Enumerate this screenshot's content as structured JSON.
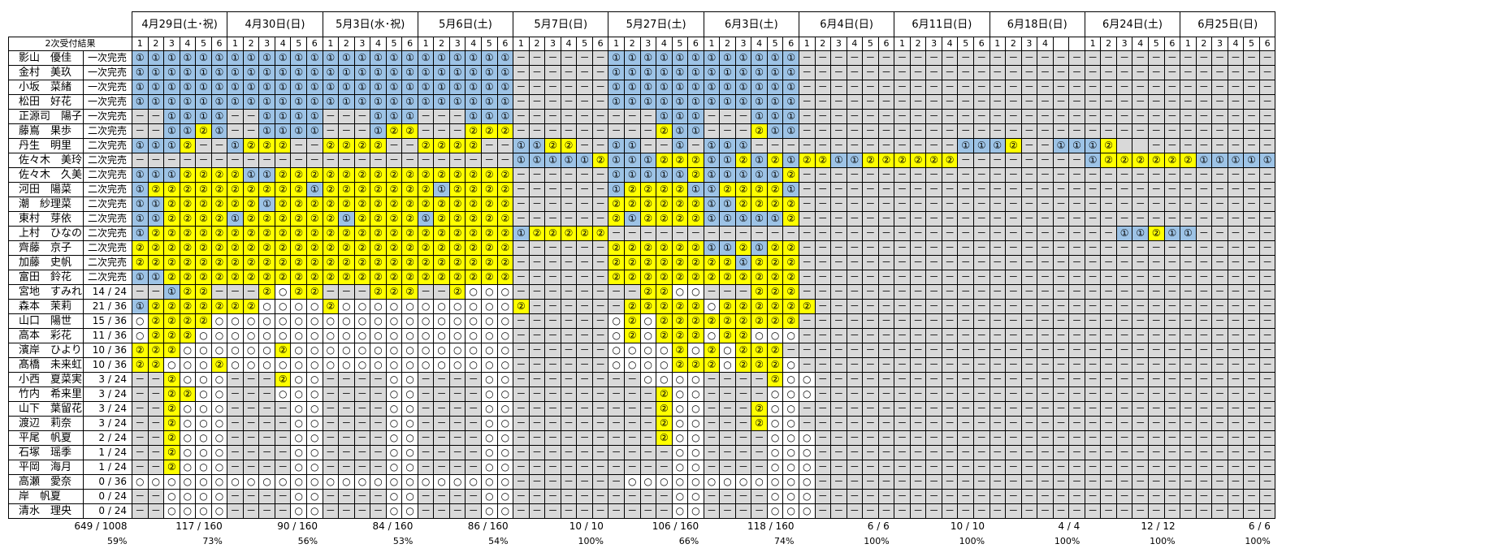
{
  "header_label": "2次受付結果",
  "dates": [
    "4月29日(土･祝)",
    "4月30日(日)",
    "5月3日(水･祝)",
    "5月6日(土)",
    "5月7日(日)",
    "5月27日(土)",
    "6月3日(土)",
    "6月4日(日)",
    "6月11日(日)",
    "6月18日(日)",
    "6月24日(土)",
    "6月25日(日)"
  ],
  "parts": [
    [
      "1",
      "2",
      "3",
      "4",
      "5",
      "6"
    ],
    [
      "1",
      "2",
      "3",
      "4",
      "5",
      "6"
    ],
    [
      "1",
      "2",
      "3",
      "4",
      "5",
      "6"
    ],
    [
      "1",
      "2",
      "3",
      "4",
      "5",
      "6"
    ],
    [
      "1",
      "2",
      "3",
      "4",
      "5",
      "6"
    ],
    [
      "1",
      "2",
      "3",
      "4",
      "5",
      "6"
    ],
    [
      "1",
      "2",
      "3",
      "4",
      "5",
      "6"
    ],
    [
      "1",
      "2",
      "3",
      "4",
      "5",
      "6"
    ],
    [
      "1",
      "2",
      "3",
      "4",
      "5",
      "6"
    ],
    [
      "1",
      "2",
      "3",
      "4",
      "",
      ""
    ],
    [
      "1",
      "2",
      "3",
      "4",
      "5",
      "6"
    ],
    [
      "1",
      "2",
      "3",
      "4",
      "5",
      "6"
    ]
  ],
  "symbols": {
    "1": "①",
    "2": "②",
    "o": "○",
    "d": "－",
    "b": ""
  },
  "members": [
    {
      "name": "影山　優佳",
      "status": "一次完売",
      "cells": "111111111111111111111111dddddd111111111111dddddddddddddddddddddddddddddd"
    },
    {
      "name": "金村　美玖",
      "status": "一次完売",
      "cells": "111111111111111111111111dddddd111111111111dddddddddddddddddddddddddddddd"
    },
    {
      "name": "小坂　菜緒",
      "status": "一次完売",
      "cells": "111111111111111111111111dddddd111111111111dddddddddddddddddddddddddddddd"
    },
    {
      "name": "松田　好花",
      "status": "一次完売",
      "cells": "111111111111111111111111dddddd111111111111dddddddddddddddddddddddddddddd"
    },
    {
      "name": "正源司　陽子",
      "status": "一次完売",
      "cells": "dd1111dd1111ddd111ddd111ddddddddd111ddd111dddddddddddddddddddddddddddddd"
    },
    {
      "name": "藤嶌　果歩",
      "status": "二次完売",
      "cells": "dd1121dd1111ddd122ddd222ddddddddd211ddd211dddddddddddddddddddddddddddddd"
    },
    {
      "name": "丹生　明里",
      "status": "二次完売",
      "cells": "1112dd1222dd2222dd2222dd1122dd11dd1d111ddddddddddddd1112dd1112bbdddddddd"
    },
    {
      "name": "佐々木　美玲",
      "status": "二次完売",
      "cells": "dddddddddddddddddddddddd1111121112221121212211222222dddddddd122222211111"
    },
    {
      "name": "佐々木　久美",
      "status": "二次完売",
      "cells": "111222211222222222222222dddddd111112111112dddddddddddddddddddddddddddddd"
    },
    {
      "name": "河田　陽菜",
      "status": "二次完売",
      "cells": "122222222221222222212222dddddd122221122221dddddddddddddddddddddddddddddd"
    },
    {
      "name": "潮　紗理菜",
      "status": "二次完売",
      "cells": "112222221222222222222222dddddd222222112222dddddddddddddddddddddddddddddd"
    },
    {
      "name": "東村　芽依",
      "status": "二次完売",
      "cells": "112222122222212222122222dddddd212222111112dddddddddddddddddddddddddddddd"
    },
    {
      "name": "上村　ひなの",
      "status": "二次完売",
      "cells": "122222222222222222222222122222dddddddddddddddddddddddddddddddd11211ddddd"
    },
    {
      "name": "齊藤　京子",
      "status": "二次完売",
      "cells": "222222222222222222222222dddddd222222112122dddddddddddddddddddddddddddddd"
    },
    {
      "name": "加藤　史帆",
      "status": "二次完売",
      "cells": "222222222222222222222222dddddd222222221222dddddddddddddddddddddddddddddd"
    },
    {
      "name": "富田　鈴花",
      "status": "二次完売",
      "cells": "112222222222222222222222dddddd222222222222dddddddddddddddddddddddddddddd"
    },
    {
      "name": "宮地　すみれ",
      "status": "14 / 24",
      "cells": "dd122ddd2o22ddd222dd2ooodddddddd22ooddd222dddddddddddddddddddddddddddddd"
    },
    {
      "name": "森本　茉莉",
      "status": "21 / 36",
      "cells": "12222222oooo2ooooooooooo2dddddd22222o222222ddddddddddddddddddddddddddddd"
    },
    {
      "name": "山口　陽世",
      "status": "15 / 36",
      "cells": "o2222oooooooooooooooooooddddddo2o222222222dddddddddddddddddddddddddddddd"
    },
    {
      "name": "高本　彩花",
      "status": "11 / 36",
      "cells": "o222ooooooooooooooooooooddddddo2o222o22ooodddddddddddddddddddddddddddddd"
    },
    {
      "name": "濱岸　ひより",
      "status": "10 / 36",
      "cells": "222oooooo2ooooooooooooooddddddoooo2o2o222ddddddddddddddddddddddddddddddd"
    },
    {
      "name": "髙橋　未来虹",
      "status": "10 / 36",
      "cells": "22ooo2ooooooooooooooooooddddddoooo222o222oddddddddddddddddddddddddddddddd"
    },
    {
      "name": "小西　夏菜実",
      "status": "3 / 24",
      "cells": "dd2oooddd2ooddddooddddooddddddddoooodddd2oodddddddddddddddddddddddddddddd"
    },
    {
      "name": "竹内　希来里",
      "status": "3 / 24",
      "cells": "dd22oodddoooddddooddddooddddddddd2ooddddooodddddddddddddddddddddddddddddd"
    },
    {
      "name": "山下　葉留花",
      "status": "3 / 24",
      "cells": "dd2oooddddooddddooddddooddddddddd2ooddd2oodddddddddddddddddddddddddddddd"
    },
    {
      "name": "渡辺　莉奈",
      "status": "3 / 24",
      "cells": "dd2oooddddooddddooddddooddddddddd2ooddd2oodddddddddddddddddddddddddddddd"
    },
    {
      "name": "平尾　帆夏",
      "status": "2 / 24",
      "cells": "dd2oooddddooddddooddddooddddddddd2ooddddooodddddddddddddddddddddddddddddd"
    },
    {
      "name": "石塚　瑶季",
      "status": "1 / 24",
      "cells": "dd2oooddddooddddooddddooddddddddddooddddooodddddddddddddddddddddddddddddd"
    },
    {
      "name": "平岡　海月",
      "status": "1 / 24",
      "cells": "dd2oooddddooddddooddddooddddddddddooddddooodddddddddddddddddddddddddddddd"
    },
    {
      "name": "高瀬　愛奈",
      "status": "0 / 36",
      "cells": "oooooooooooooooooooooooodddddddoooooooooooodddddddddddddddddddddddddddddd"
    },
    {
      "name": "岸　帆夏",
      "status": "0 / 24",
      "cells": "ddooooddddooddddooddddooddddddddddooddddoooddddddddddddddddddddddddddddd"
    },
    {
      "name": "清水　理央",
      "status": "0 / 24",
      "cells": "ddooooddddooddddooddddooddddddddddooddddoooddddddddddddddddddddddddddddd"
    }
  ],
  "totals": {
    "overall": {
      "count": "649 / 1008",
      "pct": "59%"
    },
    "dates": [
      {
        "count": "117 / 160",
        "pct": "73%"
      },
      {
        "count": "90 / 160",
        "pct": "56%"
      },
      {
        "count": "84 / 160",
        "pct": "53%"
      },
      {
        "count": "86 / 160",
        "pct": "54%"
      },
      {
        "count": "10 / 10",
        "pct": "100%"
      },
      {
        "count": "106 / 160",
        "pct": "66%"
      },
      {
        "count": "118 / 160",
        "pct": "74%"
      },
      {
        "count": "6 / 6",
        "pct": "100%"
      },
      {
        "count": "10 / 10",
        "pct": "100%"
      },
      {
        "count": "4 / 4",
        "pct": "100%"
      },
      {
        "count": "12 / 12",
        "pct": "100%"
      },
      {
        "count": "6 / 6",
        "pct": "100%"
      }
    ]
  },
  "colors": {
    "slot_1": "#9dc3e6",
    "slot_2": "#ffff00",
    "empty": "#ffffff",
    "none": "#d9d9d9"
  }
}
